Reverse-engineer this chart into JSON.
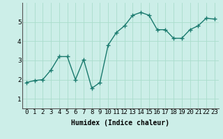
{
  "x": [
    0,
    1,
    2,
    3,
    4,
    5,
    6,
    7,
    8,
    9,
    10,
    11,
    12,
    13,
    14,
    15,
    16,
    17,
    18,
    19,
    20,
    21,
    22,
    23
  ],
  "y": [
    1.85,
    1.95,
    2.0,
    2.5,
    3.2,
    3.2,
    2.0,
    3.05,
    1.55,
    1.85,
    3.8,
    4.45,
    4.8,
    5.35,
    5.5,
    5.35,
    4.6,
    4.6,
    4.15,
    4.15,
    4.6,
    4.8,
    5.2,
    5.15
  ],
  "line_color": "#1a7a6e",
  "marker": "+",
  "marker_size": 4,
  "marker_linewidth": 1.0,
  "line_width": 1.0,
  "xlabel": "Humidex (Indice chaleur)",
  "xlim": [
    -0.5,
    23.5
  ],
  "ylim": [
    0.5,
    6.0
  ],
  "yticks": [
    1,
    2,
    3,
    4,
    5
  ],
  "xtick_labels": [
    "0",
    "1",
    "2",
    "3",
    "4",
    "5",
    "6",
    "7",
    "8",
    "9",
    "10",
    "11",
    "12",
    "13",
    "14",
    "15",
    "16",
    "17",
    "18",
    "19",
    "20",
    "21",
    "22",
    "23"
  ],
  "bg_color": "#cceee8",
  "grid_color": "#aaddcc",
  "xlabel_fontsize": 7,
  "tick_fontsize": 6.5
}
